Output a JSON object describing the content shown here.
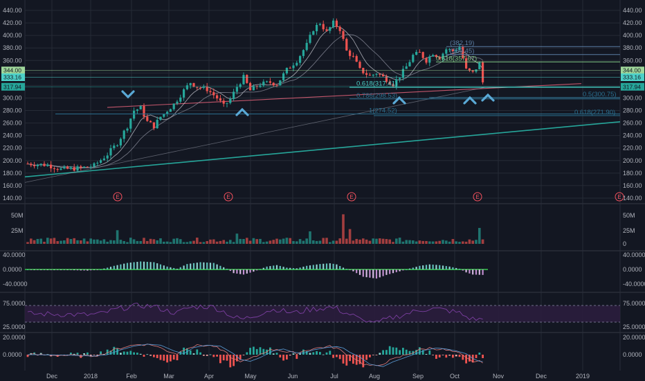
{
  "chart_data": {
    "type": "candlestick",
    "price_axis": {
      "ticks": [
        "440.00",
        "420.00",
        "400.00",
        "380.00",
        "360.00",
        "340.00",
        "320.00",
        "300.00",
        "280.00",
        "260.00",
        "240.00",
        "220.00",
        "200.00",
        "180.00",
        "160.00",
        "140.00"
      ],
      "ylim": [
        137,
        447
      ]
    },
    "time_axis": {
      "ticks": [
        "Dec",
        "2018",
        "Feb",
        "Mar",
        "Apr",
        "May",
        "Jun",
        "Jul",
        "Aug",
        "Sep",
        "Oct",
        "Nov",
        "Dec",
        "2019"
      ]
    },
    "price_tags": [
      {
        "label": "344.00",
        "value": 344.0,
        "color": "#9fd69a"
      },
      {
        "label": "333.16",
        "value": 333.16,
        "color": "#4dd0c8"
      },
      {
        "label": "317.94",
        "value": 317.94,
        "color": "#26a69a"
      }
    ],
    "fib_levels": [
      {
        "label": "(382.19)",
        "value": 382.19,
        "color": "#5b7da3"
      },
      {
        "label": "(369.45)",
        "value": 369.45,
        "color": "#5b7da3"
      },
      {
        "label": "0.618(357.67)",
        "value": 357.67,
        "color": "#81c784"
      },
      {
        "label": "0.618(317.41)",
        "value": 317.41,
        "color": "#4dd0c8"
      },
      {
        "label": "0.786(298.53)",
        "value": 298.53,
        "color": "#2a6f8f"
      },
      {
        "label": "0.5(300.75)",
        "value": 300.75,
        "color": "#2a6f8f"
      },
      {
        "label": "1(274.52)",
        "value": 274.52,
        "color": "#2a6f8f"
      },
      {
        "label": "0.618(271.90)",
        "value": 271.9,
        "color": "#2a6f8f"
      }
    ],
    "earnings_markers": [
      "E",
      "E",
      "E",
      "E",
      "E"
    ],
    "volume_axis": {
      "ticks": [
        "50M",
        "25M",
        "0"
      ]
    },
    "macd_axis": {
      "ticks": [
        "40.0000",
        "0.0000",
        "-40.0000"
      ]
    },
    "rsi_axis": {
      "ticks": [
        "75.0000",
        "25.0000"
      ]
    },
    "osc_axis": {
      "ticks": [
        "20.0000",
        "0.0000"
      ]
    },
    "colors": {
      "up": "#26a69a",
      "down": "#ef5350",
      "background": "#131722",
      "grid": "#262b36"
    }
  }
}
